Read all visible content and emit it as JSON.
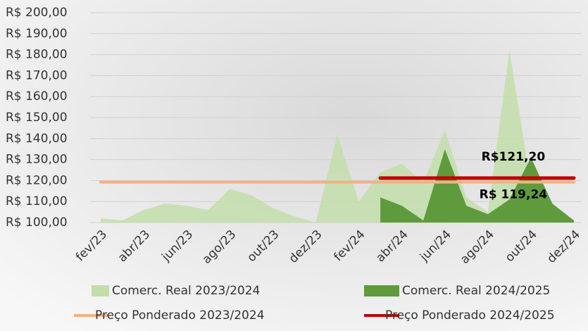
{
  "chart_data": {
    "type": "area",
    "categories": [
      "fev/23",
      null,
      "abr/23",
      null,
      "jun/23",
      null,
      "ago/23",
      null,
      "out/23",
      null,
      "dez/23",
      null,
      "fev/24",
      null,
      "abr/24",
      null,
      "jun/24",
      null,
      "ago/24",
      null,
      "out/24",
      null,
      "dez/24"
    ],
    "series": [
      {
        "name": "Comerc. Real 2023/2024",
        "type": "area",
        "color": "#c3deaa",
        "values": [
          102,
          101,
          106,
          109,
          108,
          106,
          116,
          113,
          107,
          103,
          100,
          142,
          110,
          124,
          128,
          119,
          144,
          112,
          105,
          182,
          118,
          108,
          101
        ]
      },
      {
        "name": "Comerc. Real 2024/2025",
        "type": "area",
        "color": "#5f9b3d",
        "values": [
          null,
          null,
          null,
          null,
          null,
          null,
          null,
          null,
          null,
          null,
          null,
          null,
          null,
          112,
          108,
          101,
          135,
          108,
          104,
          111,
          131,
          109,
          101
        ]
      },
      {
        "name": "Preço Ponderado 2023/2024",
        "type": "line",
        "color": "#f4b183",
        "values": [
          119.24,
          119.24,
          119.24,
          119.24,
          119.24,
          119.24,
          119.24,
          119.24,
          119.24,
          119.24,
          119.24,
          119.24,
          119.24,
          119.24,
          119.24,
          119.24,
          119.24,
          119.24,
          119.24,
          119.24,
          119.24,
          119.24,
          119.24
        ],
        "value_labels": [
          null,
          null,
          null,
          null,
          null,
          null,
          null,
          null,
          null,
          null,
          null,
          null,
          null,
          null,
          null,
          null,
          null,
          null,
          null,
          null,
          "R$ 119,24",
          null,
          null
        ]
      },
      {
        "name": "Preço Ponderado 2024/2025",
        "type": "line",
        "color": "#c00000",
        "values": [
          null,
          null,
          null,
          null,
          null,
          null,
          null,
          null,
          null,
          null,
          null,
          null,
          null,
          121.2,
          121.2,
          121.2,
          121.2,
          121.2,
          121.2,
          121.2,
          121.2,
          121.2,
          121.2
        ],
        "value_labels": [
          null,
          null,
          null,
          null,
          null,
          null,
          null,
          null,
          null,
          null,
          null,
          null,
          null,
          null,
          null,
          null,
          null,
          null,
          null,
          null,
          "R$121,20",
          null,
          null
        ]
      }
    ],
    "ylim": [
      100,
      200
    ],
    "yticks": [
      {
        "value": 100,
        "label": "R$ 100,00"
      },
      {
        "value": 110,
        "label": "R$ 110,00"
      },
      {
        "value": 120,
        "label": "R$ 120,00"
      },
      {
        "value": 130,
        "label": "R$ 130,00"
      },
      {
        "value": 140,
        "label": "R$ 140,00"
      },
      {
        "value": 150,
        "label": "R$ 150,00"
      },
      {
        "value": 160,
        "label": "R$ 160,00"
      },
      {
        "value": 170,
        "label": "R$ 170,00"
      },
      {
        "value": 180,
        "label": "R$ 180,00"
      },
      {
        "value": 190,
        "label": "R$ 190,00"
      },
      {
        "value": 200,
        "label": "R$ 200,00"
      }
    ],
    "grid": true,
    "legend": "bottom"
  }
}
